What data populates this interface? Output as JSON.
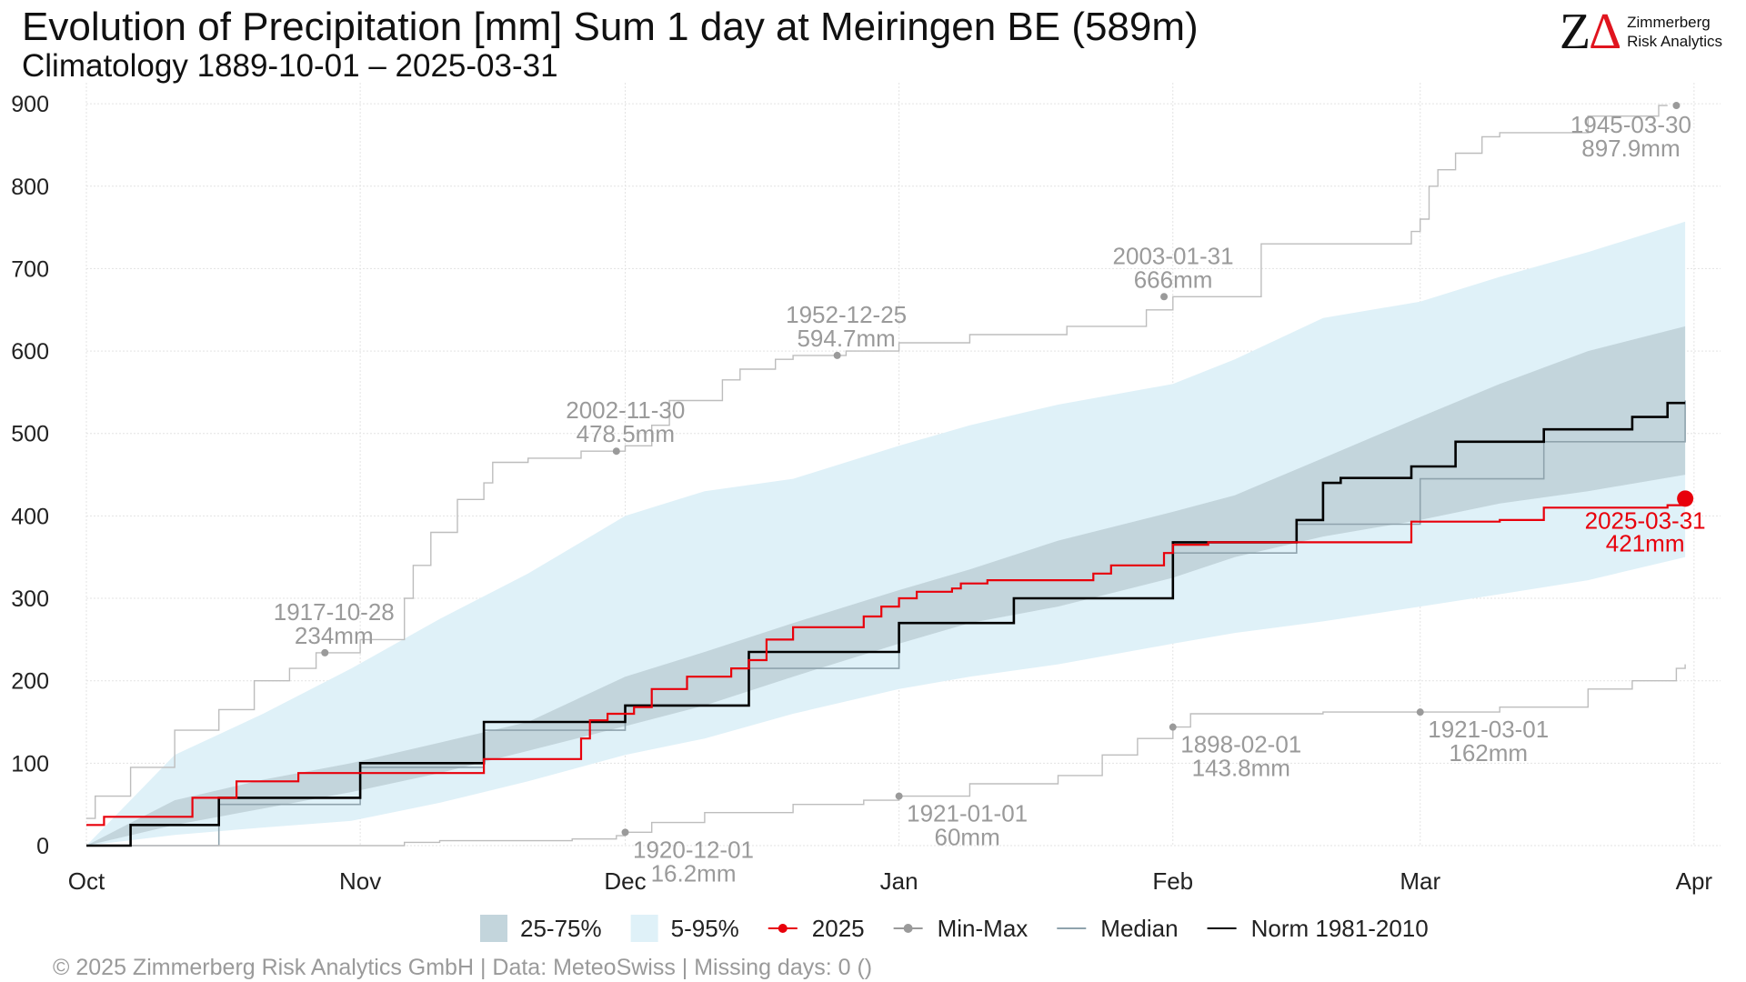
{
  "header": {
    "title": "Evolution of Precipitation [mm] Sum 1 day at Meiringen  BE (589m)",
    "subtitle": "Climatology 1889-10-01 – 2025-03-31"
  },
  "logo": {
    "mark_left": "Z",
    "mark_right": "Δ",
    "line1": "Zimmerberg",
    "line2": "Risk Analytics",
    "accent": "#e0141e"
  },
  "footer": {
    "text": "©  2025 Zimmerberg Risk Analytics GmbH | Data: MeteoSwiss | Missing days: 0 ()"
  },
  "chart_data": {
    "type": "line",
    "ylim": [
      0,
      920
    ],
    "y_ticks": [
      0,
      100,
      200,
      300,
      400,
      500,
      600,
      700,
      800,
      900
    ],
    "x_ticks": [
      {
        "label": "Oct",
        "day": 0
      },
      {
        "label": "Nov",
        "day": 31
      },
      {
        "label": "Dec",
        "day": 61
      },
      {
        "label": "Jan",
        "day": 92
      },
      {
        "label": "Feb",
        "day": 123
      },
      {
        "label": "Mar",
        "day": 151
      },
      {
        "label": "Apr",
        "day": 182
      }
    ],
    "grid": true,
    "legend_position": "bottom",
    "colors": {
      "band_25_75": "#c3d5dc",
      "band_5_95": "#dff1f8",
      "current": "#e8000b",
      "minmax": "#bdbdbd",
      "minmax_label": "#9a9a9a",
      "median": "#8fa3ad",
      "norm": "#000000"
    },
    "legend": [
      {
        "label": "25-75%",
        "kind": "box",
        "color": "#c3d5dc"
      },
      {
        "label": "5-95%",
        "kind": "box",
        "color": "#dff1f8"
      },
      {
        "label": "2025",
        "kind": "line-dot",
        "color": "#e8000b"
      },
      {
        "label": "Min-Max",
        "kind": "line-dot",
        "color": "#9a9a9a"
      },
      {
        "label": "Median",
        "kind": "line",
        "color": "#8fa3ad"
      },
      {
        "label": "Norm 1981-2010",
        "kind": "line",
        "color": "#000000"
      }
    ],
    "bands": {
      "x": [
        0,
        10,
        20,
        30,
        40,
        50,
        61,
        70,
        80,
        92,
        100,
        110,
        123,
        130,
        140,
        151,
        160,
        170,
        181
      ],
      "p5": [
        0,
        13,
        22,
        30,
        52,
        78,
        110,
        130,
        160,
        190,
        205,
        220,
        245,
        258,
        272,
        290,
        305,
        322,
        350
      ],
      "p25": [
        0,
        25,
        45,
        65,
        88,
        115,
        145,
        170,
        205,
        245,
        270,
        290,
        325,
        350,
        375,
        395,
        415,
        430,
        450
      ],
      "p75": [
        0,
        55,
        80,
        100,
        125,
        150,
        205,
        235,
        270,
        310,
        335,
        370,
        405,
        425,
        470,
        520,
        560,
        600,
        630
      ],
      "p95": [
        0,
        110,
        160,
        215,
        275,
        330,
        400,
        430,
        445,
        485,
        510,
        535,
        560,
        590,
        640,
        660,
        690,
        720,
        757
      ]
    },
    "median": {
      "x": [
        0,
        15,
        31,
        45,
        61,
        75,
        92,
        105,
        123,
        137,
        151,
        165,
        181
      ],
      "y": [
        0,
        50,
        95,
        140,
        170,
        215,
        270,
        300,
        355,
        390,
        445,
        490,
        540
      ]
    },
    "series": [
      {
        "name": "2025",
        "x": [
          0,
          2,
          12,
          17,
          24,
          32,
          43,
          45,
          56,
          57,
          59,
          62,
          64,
          68,
          73,
          75,
          77,
          80,
          86,
          88,
          90,
          92,
          94,
          98,
          99,
          102,
          108,
          110,
          114,
          116,
          122,
          123,
          127,
          134,
          150,
          160,
          165,
          179,
          181
        ],
        "y": [
          25,
          35,
          58,
          78,
          88,
          88,
          88,
          105,
          130,
          152,
          160,
          168,
          190,
          205,
          215,
          225,
          250,
          265,
          265,
          278,
          290,
          300,
          308,
          312,
          318,
          322,
          322,
          322,
          330,
          340,
          355,
          365,
          368,
          368,
          393,
          395,
          410,
          413,
          421
        ]
      },
      {
        "name": "Norm 1981-2010",
        "x": [
          0,
          5,
          15,
          31,
          45,
          61,
          75,
          92,
          105,
          123,
          137,
          140,
          142,
          150,
          155,
          165,
          175,
          179,
          181
        ],
        "y": [
          0,
          25,
          58,
          100,
          150,
          170,
          235,
          270,
          300,
          368,
          395,
          440,
          446,
          460,
          490,
          505,
          520,
          537,
          537
        ]
      },
      {
        "name": "Min-Max max",
        "x": [
          0,
          1,
          5,
          10,
          15,
          19,
          23,
          26,
          27,
          31,
          36,
          37,
          39,
          42,
          45,
          46,
          50,
          56,
          60,
          61,
          64,
          66,
          72,
          74,
          78,
          80,
          84,
          86,
          92,
          100,
          111,
          120,
          123,
          133,
          150,
          151,
          152,
          153,
          155,
          158,
          160,
          170,
          178,
          179
        ],
        "y": [
          33,
          60,
          95,
          140,
          165,
          200,
          215,
          234,
          234,
          250,
          300,
          340,
          380,
          420,
          440,
          465,
          470,
          478.5,
          478.5,
          485,
          510,
          540,
          565,
          578,
          590,
          594.7,
          594.7,
          600,
          610,
          620,
          630,
          650,
          666,
          730,
          745,
          760,
          800,
          820,
          840,
          860,
          865,
          885,
          897.9,
          897.9
        ]
      },
      {
        "name": "Min-Max min",
        "x": [
          0,
          30,
          36,
          40,
          55,
          60,
          61,
          64,
          70,
          80,
          88,
          92,
          100,
          110,
          115,
          119,
          123,
          125,
          140,
          151,
          160,
          170,
          175,
          180,
          181
        ],
        "y": [
          0,
          0,
          4,
          6,
          8,
          12,
          16.2,
          28,
          40,
          50,
          55,
          60,
          75,
          85,
          110,
          130,
          143.8,
          160,
          162,
          162,
          168,
          190,
          200,
          215,
          220
        ]
      }
    ],
    "records": [
      {
        "kind": "max",
        "day": 27,
        "value": 234,
        "date": "1917-10-28",
        "label": "234mm"
      },
      {
        "kind": "max",
        "day": 60,
        "value": 478.5,
        "date": "2002-11-30",
        "label": "478.5mm"
      },
      {
        "kind": "max",
        "day": 85,
        "value": 594.7,
        "date": "1952-12-25",
        "label": "594.7mm"
      },
      {
        "kind": "max",
        "day": 122,
        "value": 666,
        "date": "2003-01-31",
        "label": "666mm"
      },
      {
        "kind": "max",
        "day": 180,
        "value": 897.9,
        "date": "1945-03-30",
        "label": "897.9mm"
      },
      {
        "kind": "min",
        "day": 61,
        "value": 16.2,
        "date": "1920-12-01",
        "label": "16.2mm"
      },
      {
        "kind": "min",
        "day": 92,
        "value": 60,
        "date": "1921-01-01",
        "label": "60mm"
      },
      {
        "kind": "min",
        "day": 123,
        "value": 143.8,
        "date": "1898-02-01",
        "label": "143.8mm"
      },
      {
        "kind": "min",
        "day": 151,
        "value": 162,
        "date": "1921-03-01",
        "label": "162mm"
      }
    ],
    "current_point": {
      "day": 181,
      "value": 421,
      "date": "2025-03-31",
      "label": "421mm"
    }
  }
}
